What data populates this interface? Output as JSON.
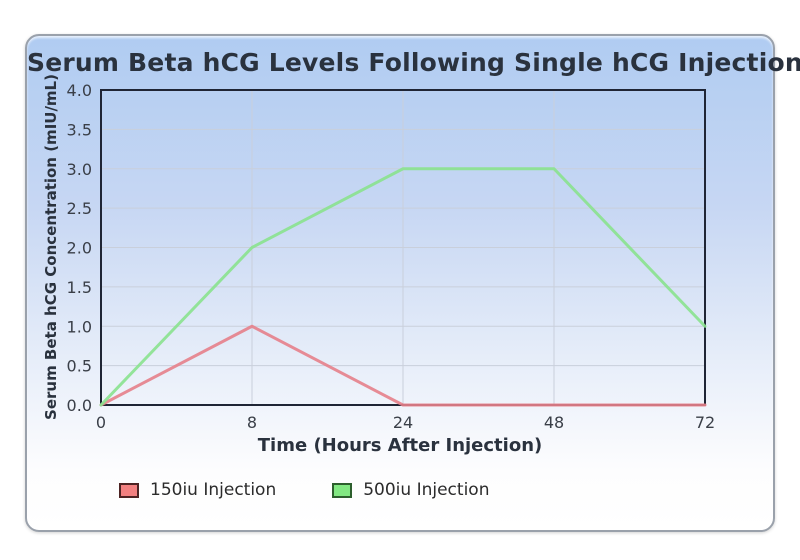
{
  "chart_data": {
    "type": "line",
    "title": "Serum Beta hCG Levels Following Single hCG Injection",
    "xlabel": "Time (Hours After Injection)",
    "ylabel": "Serum Beta hCG Concentration (mIU/mL)",
    "categories": [
      "0",
      "8",
      "24",
      "48",
      "72"
    ],
    "y_ticks": [
      0.0,
      0.5,
      1.0,
      1.5,
      2.0,
      2.5,
      3.0,
      3.5,
      4.0
    ],
    "ylim": [
      0,
      4
    ],
    "grid": true,
    "legend_position": "bottom",
    "series": [
      {
        "name": "150iu Injection",
        "values": [
          0,
          1.0,
          0,
          0,
          0
        ],
        "line_color": "#e5808a",
        "swatch_fill": "#f28080",
        "swatch_border": "#4d2323"
      },
      {
        "name": "500iu Injection",
        "values": [
          0,
          2.0,
          3.0,
          3.0,
          1.0
        ],
        "line_color": "#89e28e",
        "swatch_fill": "#82e882",
        "swatch_border": "#2d5f2d"
      }
    ],
    "colors": {
      "frame": "#1f2535",
      "grid": "#c9cfdb",
      "tick_text": "#3a3f48",
      "title_text": "#2a323e",
      "axis_title_text": "#2a323e",
      "card_gradient_top": "#b0ccf2",
      "card_gradient_bottom": "#ffffff",
      "card_border": "#9aa1ab"
    }
  }
}
